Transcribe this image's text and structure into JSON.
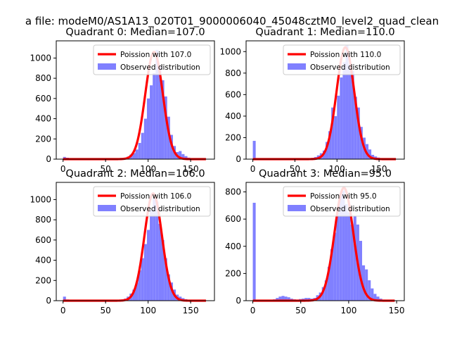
{
  "figure": {
    "suptitle": "a file: modeM0/AS1A13_020T01_9000006040_45048cztM0_level2_quad_clean"
  },
  "chart_data": [
    {
      "type": "bar",
      "title": "Quadrant 0: Median=107.0",
      "legend": {
        "placement": "top-right",
        "line_label": "Poission with 107.0",
        "hist_label": "Observed distribution"
      },
      "colors": {
        "line": "#ff0000",
        "hist": "#8080ff"
      },
      "xlim": [
        -8,
        178
      ],
      "ylim": [
        0,
        1170
      ],
      "xticks": [
        0,
        50,
        100,
        150
      ],
      "yticks": [
        0,
        200,
        400,
        600,
        800,
        1000
      ],
      "poisson_mean": 107.0,
      "poisson_peak": 1060,
      "bin_width": 3.4,
      "bins": [
        [
          0,
          22
        ],
        [
          3.4,
          14
        ],
        [
          6.8,
          9
        ],
        [
          10.2,
          7
        ],
        [
          13.6,
          6
        ],
        [
          64.6,
          8
        ],
        [
          68,
          12
        ],
        [
          71.4,
          15
        ],
        [
          74.8,
          25
        ],
        [
          78.2,
          45
        ],
        [
          81.6,
          60
        ],
        [
          85,
          95
        ],
        [
          88.4,
          160
        ],
        [
          91.8,
          260
        ],
        [
          95.2,
          400
        ],
        [
          98.6,
          600
        ],
        [
          102,
          730
        ],
        [
          105.4,
          850
        ],
        [
          108.8,
          1080
        ],
        [
          112.2,
          920
        ],
        [
          115.6,
          780
        ],
        [
          119,
          620
        ],
        [
          122.4,
          420
        ],
        [
          125.8,
          240
        ],
        [
          129.2,
          130
        ],
        [
          132.6,
          70
        ],
        [
          136,
          80
        ],
        [
          139.4,
          50
        ],
        [
          142.8,
          30
        ],
        [
          146.2,
          15
        ],
        [
          149.6,
          10
        ]
      ]
    },
    {
      "type": "bar",
      "title": "Quadrant 1: Median=110.0",
      "legend": {
        "placement": "top-right",
        "line_label": "Poission with 110.0",
        "hist_label": "Observed distribution"
      },
      "colors": {
        "line": "#ff0000",
        "hist": "#8080ff"
      },
      "xlim": [
        -8,
        180
      ],
      "ylim": [
        0,
        1100
      ],
      "xticks": [
        0,
        50,
        100,
        150
      ],
      "yticks": [
        0,
        200,
        400,
        600,
        800,
        1000
      ],
      "poisson_mean": 110.0,
      "poisson_peak": 1040,
      "bin_width": 3.4,
      "bins": [
        [
          0,
          170
        ],
        [
          3.4,
          5
        ],
        [
          40,
          8
        ],
        [
          66,
          8
        ],
        [
          69.4,
          12
        ],
        [
          72.8,
          20
        ],
        [
          76.2,
          35
        ],
        [
          79.6,
          55
        ],
        [
          83,
          80
        ],
        [
          86.4,
          160
        ],
        [
          89.8,
          260
        ],
        [
          93.2,
          480
        ],
        [
          96.6,
          400
        ],
        [
          100,
          590
        ],
        [
          103.4,
          760
        ],
        [
          106.8,
          900
        ],
        [
          110.2,
          1060
        ],
        [
          113.6,
          880
        ],
        [
          117,
          820
        ],
        [
          120.4,
          580
        ],
        [
          123.8,
          480
        ],
        [
          127.2,
          300
        ],
        [
          130.6,
          200
        ],
        [
          134,
          140
        ],
        [
          137.4,
          90
        ],
        [
          140.8,
          40
        ],
        [
          144.2,
          25
        ],
        [
          147.6,
          15
        ],
        [
          151,
          10
        ]
      ]
    },
    {
      "type": "bar",
      "title": "Quadrant 2: Median=106.0",
      "legend": {
        "placement": "top-right",
        "line_label": "Poission with 106.0",
        "hist_label": "Observed distribution"
      },
      "colors": {
        "line": "#ff0000",
        "hist": "#8080ff"
      },
      "xlim": [
        -8,
        178
      ],
      "ylim": [
        0,
        1170
      ],
      "xticks": [
        0,
        50,
        100,
        150
      ],
      "yticks": [
        0,
        200,
        400,
        600,
        800,
        1000
      ],
      "poisson_mean": 106.0,
      "poisson_peak": 1060,
      "bin_width": 3.4,
      "bins": [
        [
          0,
          40
        ],
        [
          3.4,
          12
        ],
        [
          6.8,
          8
        ],
        [
          10.2,
          6
        ],
        [
          64.6,
          8
        ],
        [
          68,
          12
        ],
        [
          71.4,
          20
        ],
        [
          74.8,
          40
        ],
        [
          78.2,
          70
        ],
        [
          81.6,
          110
        ],
        [
          85,
          180
        ],
        [
          88.4,
          300
        ],
        [
          91.8,
          420
        ],
        [
          95.2,
          560
        ],
        [
          98.6,
          700
        ],
        [
          102,
          900
        ],
        [
          105.4,
          1010
        ],
        [
          108.8,
          980
        ],
        [
          112.2,
          760
        ],
        [
          115.6,
          600
        ],
        [
          119,
          420
        ],
        [
          122.4,
          260
        ],
        [
          125.8,
          180
        ],
        [
          129.2,
          110
        ],
        [
          132.6,
          60
        ],
        [
          136,
          40
        ],
        [
          139.4,
          25
        ],
        [
          142.8,
          15
        ],
        [
          146.2,
          10
        ]
      ]
    },
    {
      "type": "bar",
      "title": "Quadrant 3: Median=95.0",
      "legend": {
        "placement": "top-right",
        "line_label": "Poission with 95.0",
        "hist_label": "Observed distribution"
      },
      "colors": {
        "line": "#ff0000",
        "hist": "#8080ff"
      },
      "xlim": [
        -7,
        158
      ],
      "ylim": [
        0,
        870
      ],
      "xticks": [
        0,
        50,
        100,
        150
      ],
      "yticks": [
        0,
        200,
        400,
        600,
        800
      ],
      "poisson_mean": 95.0,
      "poisson_peak": 830,
      "bin_width": 3,
      "bins": [
        [
          0,
          720
        ],
        [
          3,
          5
        ],
        [
          21,
          10
        ],
        [
          24,
          20
        ],
        [
          27,
          30
        ],
        [
          30,
          35
        ],
        [
          33,
          30
        ],
        [
          36,
          25
        ],
        [
          39,
          15
        ],
        [
          42,
          10
        ],
        [
          45,
          8
        ],
        [
          48,
          12
        ],
        [
          51,
          15
        ],
        [
          54,
          20
        ],
        [
          57,
          20
        ],
        [
          60,
          15
        ],
        [
          63,
          20
        ],
        [
          66,
          40
        ],
        [
          69,
          60
        ],
        [
          72,
          100
        ],
        [
          75,
          150
        ],
        [
          78,
          250
        ],
        [
          81,
          380
        ],
        [
          84,
          500
        ],
        [
          87,
          650
        ],
        [
          90,
          780
        ],
        [
          93,
          810
        ],
        [
          96,
          710
        ],
        [
          99,
          650
        ],
        [
          102,
          560
        ],
        [
          105,
          620
        ],
        [
          108,
          560
        ],
        [
          111,
          440
        ],
        [
          114,
          260
        ],
        [
          117,
          230
        ],
        [
          120,
          150
        ],
        [
          123,
          90
        ],
        [
          126,
          50
        ],
        [
          129,
          30
        ],
        [
          132,
          15
        ],
        [
          135,
          8
        ],
        [
          138,
          5
        ],
        [
          141,
          3
        ]
      ]
    }
  ]
}
